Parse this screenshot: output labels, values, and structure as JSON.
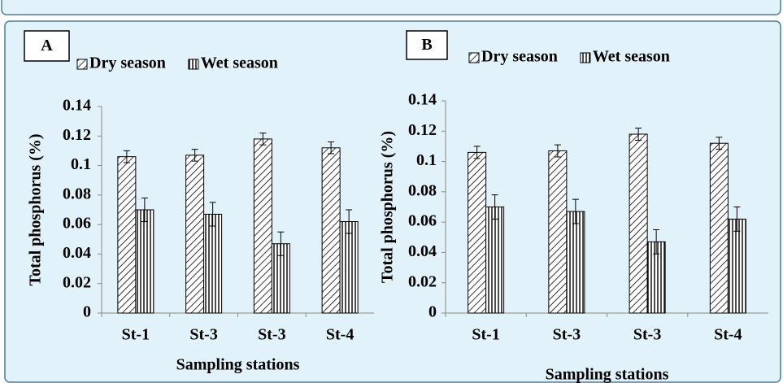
{
  "chart_data": [
    {
      "type": "bar",
      "label": "A",
      "x_label": "Sampling stations",
      "y_label": "Total phosphorus (%)",
      "categories": [
        "St-1",
        "St-3",
        "St-3",
        "St-4"
      ],
      "series": [
        {
          "name": "Dry season",
          "color": "#000000",
          "values": [
            0.106,
            0.107,
            0.118,
            0.112
          ],
          "errors": [
            0.004,
            0.004,
            0.004,
            0.004
          ]
        },
        {
          "name": "Wet season",
          "color": "#000000",
          "values": [
            0.07,
            0.067,
            0.047,
            0.062
          ],
          "errors": [
            0.008,
            0.008,
            0.008,
            0.008
          ]
        }
      ],
      "ylim": [
        0,
        0.14
      ],
      "yticks": [
        0,
        0.02,
        0.04,
        0.06,
        0.08,
        0.1,
        0.12,
        0.14
      ]
    },
    {
      "type": "bar",
      "label": "B",
      "x_label": "Sampling stations",
      "y_label": "Total phosphorus (%)",
      "categories": [
        "St-1",
        "St-3",
        "St-3",
        "St-4"
      ],
      "series": [
        {
          "name": "Dry season",
          "color": "#000000",
          "values": [
            0.106,
            0.107,
            0.118,
            0.112
          ],
          "errors": [
            0.004,
            0.004,
            0.004,
            0.004
          ]
        },
        {
          "name": "Wet season",
          "color": "#000000",
          "values": [
            0.07,
            0.067,
            0.047,
            0.062
          ],
          "errors": [
            0.008,
            0.008,
            0.008,
            0.008
          ]
        }
      ],
      "ylim": [
        0,
        0.14
      ],
      "yticks": [
        0,
        0.02,
        0.04,
        0.06,
        0.08,
        0.1,
        0.12,
        0.14
      ]
    }
  ]
}
